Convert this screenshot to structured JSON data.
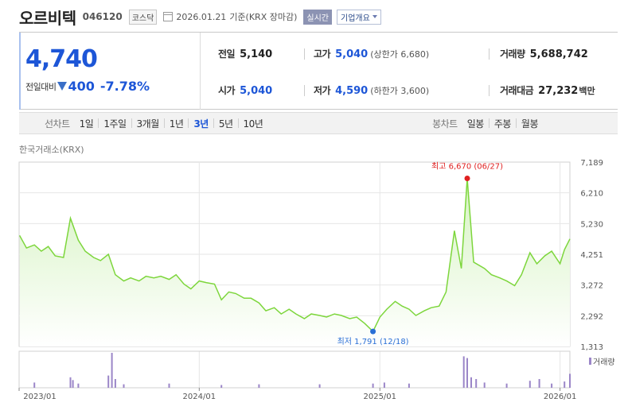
{
  "header": {
    "name": "오르비텍",
    "code": "046120",
    "market": "코스닥",
    "date": "2026.01.21",
    "basis": "기준(KRX 장마감)",
    "realtime_label": "실시간",
    "company_label": "기업개요"
  },
  "price": {
    "current": "4,740",
    "change_label": "전일대비",
    "change": "400",
    "change_pct": "-7.78%"
  },
  "stats": {
    "prev_close_label": "전일",
    "prev_close": "5,140",
    "high_label": "고가",
    "high": "5,040",
    "upper_limit": "(상한가 6,680)",
    "volume_label": "거래량",
    "volume": "5,688,742",
    "open_label": "시가",
    "open": "5,040",
    "low_label": "저가",
    "low": "4,590",
    "lower_limit": "(하한가 3,600)",
    "amount_label": "거래대금",
    "amount": "27,232",
    "amount_unit": "백만"
  },
  "period_bar": {
    "line_label": "선차트",
    "line_items": [
      "1일",
      "1주일",
      "3개월",
      "1년",
      "3년",
      "5년",
      "10년"
    ],
    "active_line": "3년",
    "candle_label": "봉차트",
    "candle_items": [
      "일봉",
      "주봉",
      "월봉"
    ]
  },
  "colors": {
    "price_blue": "#1d56d7",
    "line_green": "#7dd63c",
    "area_green_top": "#d6f3c2",
    "high_red": "#e02020",
    "low_blue": "#2a6fd6",
    "volume_bar": "#9b86c8"
  },
  "chart_data": {
    "type": "area",
    "source_label": "한국거래소(KRX)",
    "x_ticks": [
      "2023/01",
      "2024/01",
      "2025/01",
      "2026/01"
    ],
    "y_ticks": [
      1313,
      2292,
      3272,
      4251,
      5230,
      6210,
      7189
    ],
    "y_tick_labels": [
      "1,313",
      "2,292",
      "3,272",
      "4,251",
      "5,230",
      "6,210",
      "7,189"
    ],
    "ylim": [
      1313,
      7189
    ],
    "xlim": [
      "2023-01-01",
      "2026-01-21"
    ],
    "grid": true,
    "legend": "volume bars at bottom-right",
    "series": [
      {
        "x": [
          "2023-01-02",
          "2023-01-16",
          "2023-02-01",
          "2023-02-15",
          "2023-03-01",
          "2023-03-15",
          "2023-04-01",
          "2023-04-15",
          "2023-05-01",
          "2023-05-15",
          "2023-06-01",
          "2023-06-15",
          "2023-07-01",
          "2023-07-15",
          "2023-08-01",
          "2023-08-15",
          "2023-09-01",
          "2023-09-15",
          "2023-10-01",
          "2023-10-15",
          "2023-11-01",
          "2023-11-15",
          "2023-12-01",
          "2023-12-15",
          "2024-01-01",
          "2024-01-15",
          "2024-02-01",
          "2024-02-15",
          "2024-03-01",
          "2024-03-15",
          "2024-04-01",
          "2024-04-15",
          "2024-05-01",
          "2024-05-15",
          "2024-06-01",
          "2024-06-15",
          "2024-07-01",
          "2024-07-15",
          "2024-08-01",
          "2024-08-15",
          "2024-09-01",
          "2024-09-15",
          "2024-10-01",
          "2024-10-15",
          "2024-11-01",
          "2024-11-15",
          "2024-12-01",
          "2024-12-18",
          "2025-01-01",
          "2025-01-15",
          "2025-02-01",
          "2025-02-15",
          "2025-03-01",
          "2025-03-15",
          "2025-04-01",
          "2025-04-15",
          "2025-05-01",
          "2025-05-15",
          "2025-06-01",
          "2025-06-15",
          "2025-06-27",
          "2025-07-10",
          "2025-08-01",
          "2025-08-15",
          "2025-09-01",
          "2025-09-15",
          "2025-10-01",
          "2025-10-15",
          "2025-11-01",
          "2025-11-15",
          "2025-12-01",
          "2025-12-15",
          "2026-01-01",
          "2026-01-10",
          "2026-01-21"
        ],
        "y": [
          4850,
          4450,
          4550,
          4350,
          4500,
          4200,
          4150,
          5400,
          4700,
          4350,
          4150,
          4050,
          4250,
          3600,
          3400,
          3500,
          3400,
          3550,
          3500,
          3550,
          3450,
          3600,
          3300,
          3150,
          3400,
          3350,
          3300,
          2800,
          3050,
          3000,
          2850,
          2850,
          2700,
          2450,
          2550,
          2350,
          2500,
          2350,
          2200,
          2350,
          2300,
          2250,
          2350,
          2300,
          2200,
          2250,
          2050,
          1791,
          2250,
          2500,
          2750,
          2600,
          2500,
          2300,
          2450,
          2550,
          2600,
          3050,
          5000,
          3800,
          6670,
          4000,
          3800,
          3600,
          3500,
          3400,
          3250,
          3600,
          4300,
          3950,
          4200,
          4350,
          3950,
          4400,
          4740
        ]
      }
    ],
    "max_annotation": {
      "label": "최고 6,670 (06/27)",
      "x": "2025-06-27",
      "y": 6670
    },
    "min_annotation": {
      "label": "최저 1,791 (12/18)",
      "x": "2024-12-18",
      "y": 1791
    },
    "volume_label": "거래량",
    "volume": {
      "x": [
        "2023-02-01",
        "2023-04-15",
        "2023-04-20",
        "2023-05-01",
        "2023-07-01",
        "2023-07-08",
        "2023-07-15",
        "2023-08-01",
        "2023-11-01",
        "2024-02-15",
        "2024-05-01",
        "2024-09-01",
        "2024-12-18",
        "2025-01-10",
        "2025-03-01",
        "2025-06-20",
        "2025-06-27",
        "2025-07-05",
        "2025-07-15",
        "2025-08-01",
        "2025-09-15",
        "2025-11-01",
        "2025-11-20",
        "2025-12-15",
        "2026-01-10",
        "2026-01-21"
      ],
      "y": [
        0.15,
        0.3,
        0.22,
        0.12,
        0.35,
        1.0,
        0.25,
        0.1,
        0.12,
        0.08,
        0.1,
        0.1,
        0.12,
        0.15,
        0.12,
        0.9,
        0.85,
        0.3,
        0.25,
        0.15,
        0.12,
        0.2,
        0.25,
        0.12,
        0.18,
        0.4
      ]
    }
  }
}
